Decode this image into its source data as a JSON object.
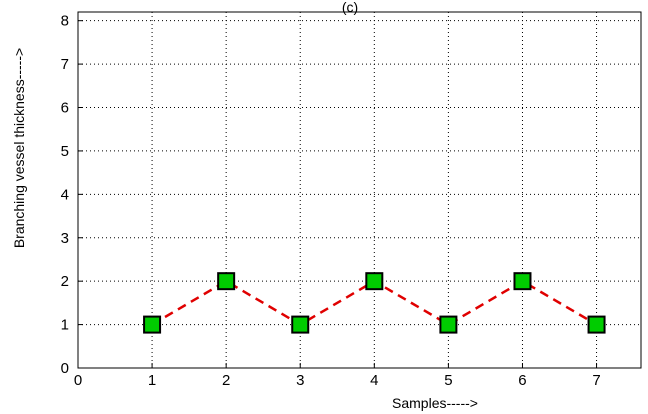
{
  "chart_data": {
    "type": "line",
    "title": "(c)",
    "xlabel": "Samples----->",
    "ylabel": "Branching vessel thickness----->",
    "xlim": [
      0,
      7.6
    ],
    "ylim": [
      0,
      8.2
    ],
    "x_ticks": [
      0,
      1,
      2,
      3,
      4,
      5,
      6,
      7
    ],
    "y_ticks": [
      0,
      1,
      2,
      3,
      4,
      5,
      6,
      7,
      8
    ],
    "grid": true,
    "series": [
      {
        "x": [
          1,
          2,
          3,
          4,
          5,
          6,
          7
        ],
        "y": [
          1,
          2,
          1,
          2,
          1,
          2,
          1
        ],
        "line_color": "#e00000",
        "line_style": "dashed",
        "marker": "square",
        "marker_color": "#00cc00",
        "marker_edge": "#000000"
      }
    ]
  }
}
